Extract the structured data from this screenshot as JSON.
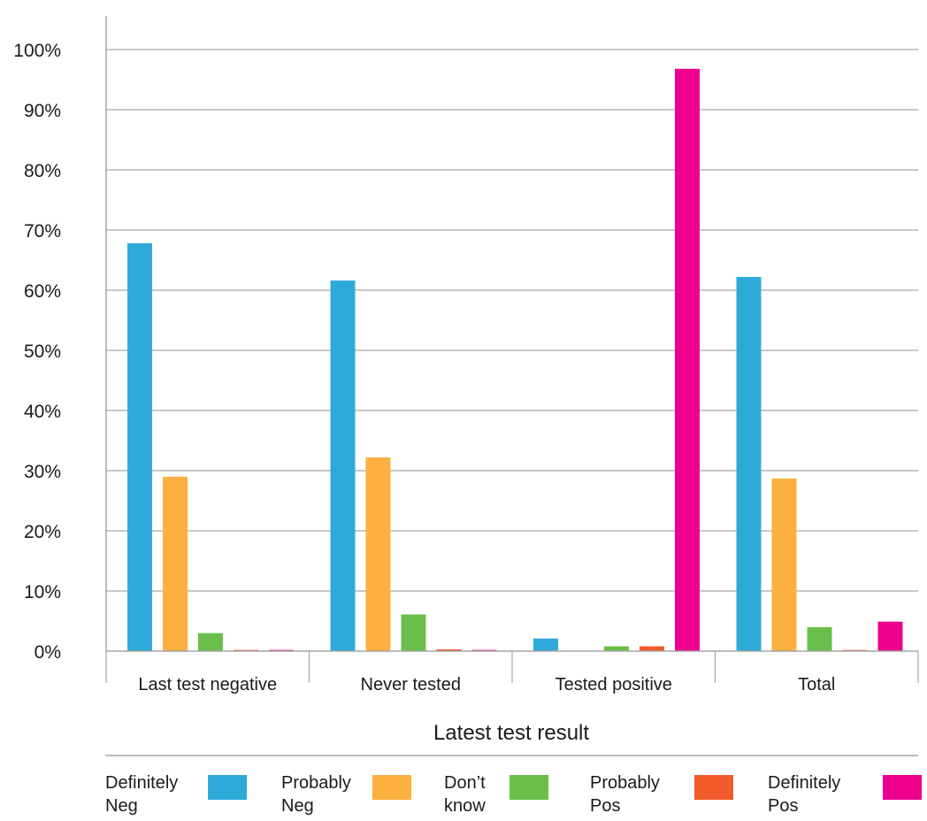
{
  "chart_data": {
    "type": "bar",
    "title": "",
    "xlabel": "Latest test result",
    "ylabel": "",
    "ylim": [
      0,
      100
    ],
    "yticks": [
      "0%",
      "10%",
      "20%",
      "30%",
      "40%",
      "50%",
      "60%",
      "70%",
      "80%",
      "90%",
      "100%"
    ],
    "categories": [
      "Last test negative",
      "Never tested",
      "Tested positive",
      "Total"
    ],
    "series": [
      {
        "name": "Definitely Neg",
        "color": "#2eaad9",
        "values": [
          67.8,
          61.6,
          2.1,
          62.2
        ]
      },
      {
        "name": "Probably Neg",
        "color": "#fbb040",
        "values": [
          29.0,
          32.2,
          0,
          28.7
        ]
      },
      {
        "name": "Don’t know",
        "color": "#6abf4b",
        "values": [
          3.0,
          6.1,
          0.8,
          4.0
        ]
      },
      {
        "name": "Probably Pos",
        "color": "#f15a2b",
        "values": [
          0.2,
          0.3,
          0.8,
          0.2
        ]
      },
      {
        "name": "Definitely Pos",
        "color": "#ec008c",
        "values": [
          0.2,
          0.2,
          96.8,
          4.9
        ]
      }
    ],
    "grid": true,
    "legend_position": "bottom"
  },
  "legend": {
    "items": [
      {
        "line1": "Definitely",
        "line2": "Neg"
      },
      {
        "line1": "Probably",
        "line2": "Neg"
      },
      {
        "line1": "Don’t",
        "line2": "know"
      },
      {
        "line1": "Probably",
        "line2": "Pos"
      },
      {
        "line1": "Definitely",
        "line2": "Pos"
      }
    ]
  }
}
